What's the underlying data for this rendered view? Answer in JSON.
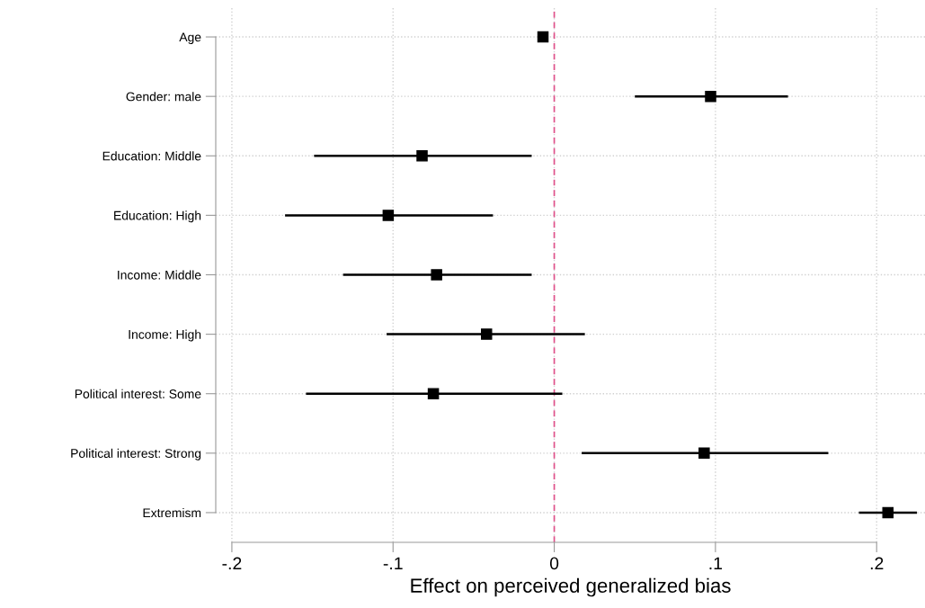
{
  "chart_data": {
    "type": "scatter",
    "orientation": "horizontal",
    "xlabel": "Effect on perceived generalized bias",
    "categories": [
      "Age",
      "Gender: male",
      "Education: Middle",
      "Education: High",
      "Income: Middle",
      "Income: High",
      "Political interest: Some",
      "Political interest: Strong",
      "Extremism"
    ],
    "series": [
      {
        "color": "#000000",
        "values": [
          -0.007,
          0.097,
          -0.082,
          -0.103,
          -0.073,
          -0.042,
          -0.075,
          0.093,
          0.207
        ],
        "errors": [
          null,
          [
            0.05,
            0.145
          ],
          [
            -0.149,
            -0.014
          ],
          [
            -0.167,
            -0.038
          ],
          [
            -0.131,
            -0.014
          ],
          [
            -0.104,
            0.019
          ],
          [
            -0.154,
            0.005
          ],
          [
            0.017,
            0.17
          ],
          [
            0.189,
            0.225
          ]
        ]
      }
    ],
    "xlim": [
      -0.21,
      0.23
    ],
    "xticks": [
      {
        "value": -0.2,
        "label": "-.2"
      },
      {
        "value": -0.1,
        "label": "-.1"
      },
      {
        "value": 0,
        "label": "0"
      },
      {
        "value": 0.1,
        "label": ".1"
      },
      {
        "value": 0.2,
        "label": ".2"
      }
    ],
    "ref_lines": [
      {
        "axis": "x",
        "value": 0,
        "color": "#e0508a",
        "line_style": "dashed"
      }
    ],
    "grid": true,
    "marker": "square",
    "legend": false
  }
}
